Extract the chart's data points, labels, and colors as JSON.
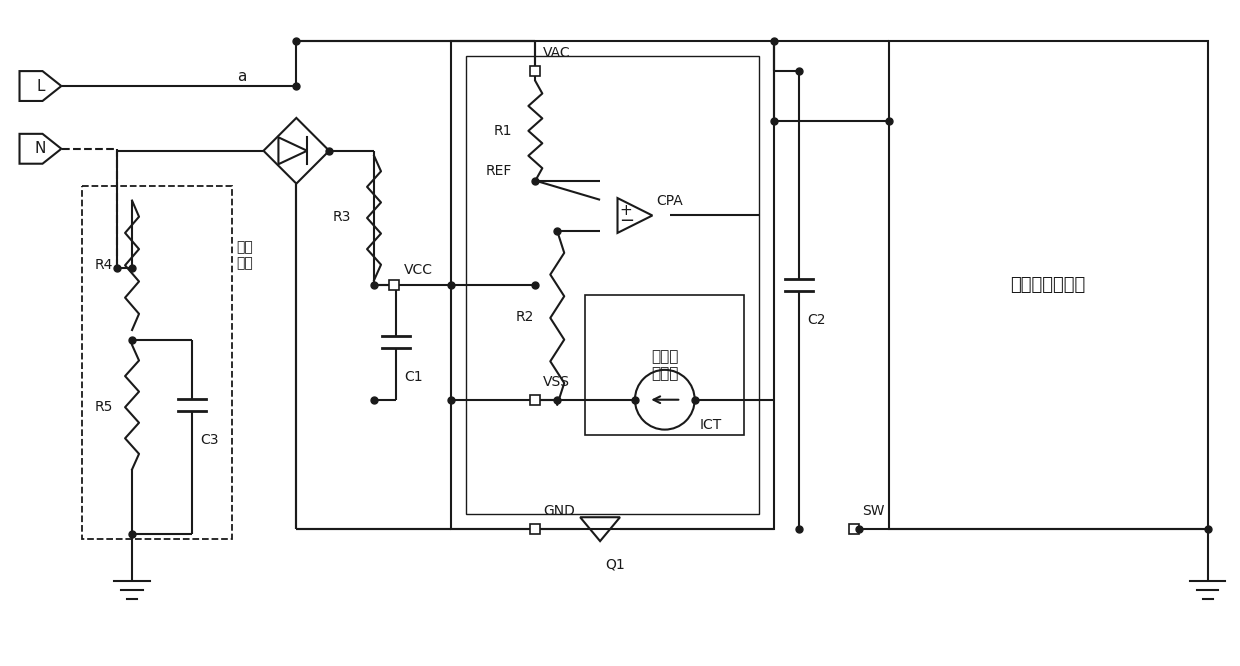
{
  "bg_color": "#ffffff",
  "lc": "#1a1a1a",
  "lw": 1.5,
  "labels": {
    "L": "L",
    "N": "N",
    "a": "a",
    "R1": "R1",
    "R2": "R2",
    "R3": "R3",
    "R4": "R4",
    "R5": "R5",
    "C1": "C1",
    "C2": "C2",
    "C3": "C3",
    "VAC": "VAC",
    "VCC": "VCC",
    "VSS": "VSS",
    "GND": "GND",
    "REF": "REF",
    "CPA": "CPA",
    "ICT": "ICT",
    "Q1": "Q1",
    "SW": "SW",
    "logic": "逻辑控\n制电路",
    "drive": "驱动模组及负载",
    "human": "人体\n模型"
  }
}
